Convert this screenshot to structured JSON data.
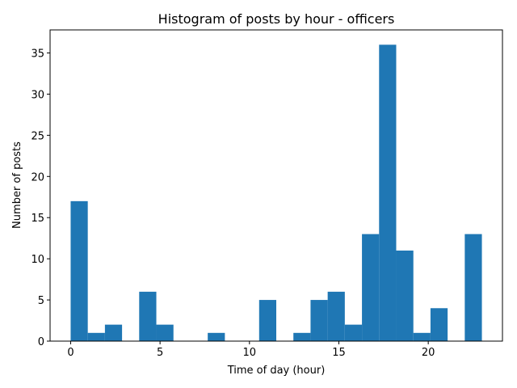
{
  "chart_data": {
    "type": "bar",
    "title": "Histogram of posts by hour - officers",
    "xlabel": "Time of day (hour)",
    "ylabel": "Number of posts",
    "xlim": [
      -1.15,
      24.15
    ],
    "ylim": [
      0,
      37.8
    ],
    "xticks": [
      0,
      5,
      10,
      15,
      20
    ],
    "yticks": [
      0,
      5,
      10,
      15,
      20,
      25,
      30,
      35
    ],
    "grid": false,
    "color": "#1f77b4",
    "bins": [
      {
        "start": 0.0,
        "end": 0.958,
        "value": 17
      },
      {
        "start": 0.958,
        "end": 1.917,
        "value": 1
      },
      {
        "start": 1.917,
        "end": 2.875,
        "value": 2
      },
      {
        "start": 2.875,
        "end": 3.833,
        "value": 0
      },
      {
        "start": 3.833,
        "end": 4.792,
        "value": 6
      },
      {
        "start": 4.792,
        "end": 5.75,
        "value": 2
      },
      {
        "start": 5.75,
        "end": 6.708,
        "value": 0
      },
      {
        "start": 6.708,
        "end": 7.667,
        "value": 0
      },
      {
        "start": 7.667,
        "end": 8.625,
        "value": 1
      },
      {
        "start": 8.625,
        "end": 9.583,
        "value": 0
      },
      {
        "start": 9.583,
        "end": 10.542,
        "value": 0
      },
      {
        "start": 10.542,
        "end": 11.5,
        "value": 5
      },
      {
        "start": 11.5,
        "end": 12.458,
        "value": 0
      },
      {
        "start": 12.458,
        "end": 13.417,
        "value": 1
      },
      {
        "start": 13.417,
        "end": 14.375,
        "value": 5
      },
      {
        "start": 14.375,
        "end": 15.333,
        "value": 6
      },
      {
        "start": 15.333,
        "end": 16.292,
        "value": 2
      },
      {
        "start": 16.292,
        "end": 17.25,
        "value": 13
      },
      {
        "start": 17.25,
        "end": 18.208,
        "value": 36
      },
      {
        "start": 18.208,
        "end": 19.167,
        "value": 11
      },
      {
        "start": 19.167,
        "end": 20.125,
        "value": 1
      },
      {
        "start": 20.125,
        "end": 21.083,
        "value": 4
      },
      {
        "start": 21.083,
        "end": 22.042,
        "value": 0
      },
      {
        "start": 22.042,
        "end": 23.0,
        "value": 13
      }
    ]
  }
}
